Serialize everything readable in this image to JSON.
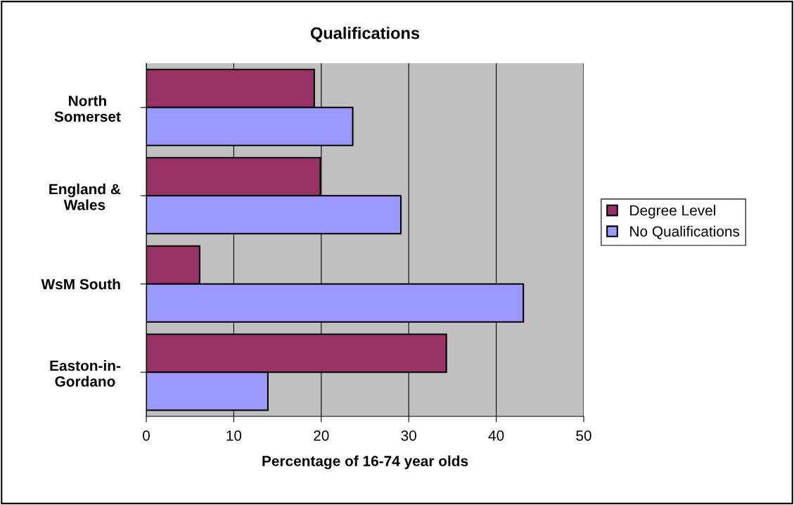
{
  "chart_data": {
    "type": "bar",
    "orientation": "horizontal",
    "title": "Qualifications",
    "xlabel": "Percentage of 16-74 year olds",
    "categories": [
      "North\nSomerset",
      "England &\nWales",
      "WsM South",
      "Easton-in-\nGordano"
    ],
    "series": [
      {
        "name": "Degree Level",
        "color": "#993366",
        "values": [
          19.2,
          19.9,
          6.1,
          34.3
        ]
      },
      {
        "name": "No Qualifications",
        "color": "#9999ff",
        "values": [
          23.6,
          29.1,
          43.1,
          13.9
        ]
      }
    ],
    "xlim": [
      0,
      50
    ],
    "xticks": [
      0,
      10,
      20,
      30,
      40,
      50
    ],
    "grid": "x",
    "legend": "right"
  }
}
